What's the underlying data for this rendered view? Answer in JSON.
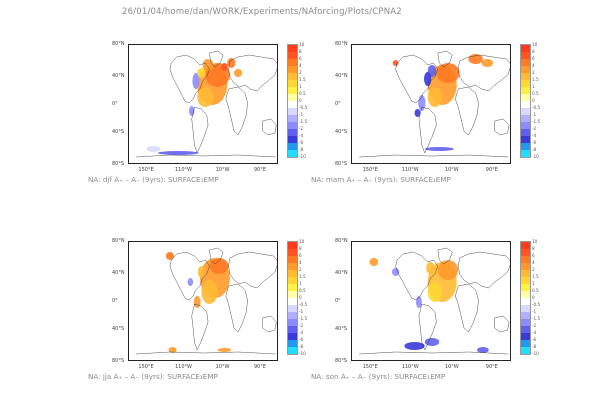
{
  "page": {
    "path_title": "26/01/04/home/dan/WORK/Experiments/NAforcing/Plots/CPNA2"
  },
  "axes": {
    "lat_labels": [
      "80°N",
      "40°N",
      "0°",
      "40°S",
      "80°S"
    ],
    "lon_labels": [
      "150°E",
      "110°W",
      "10°W",
      "90°E"
    ]
  },
  "colorbar": {
    "labels": [
      "10",
      "8",
      "6",
      "4",
      "2",
      "1.5",
      "1",
      "0.5",
      "0",
      "-0.5",
      "-1",
      "-1.5",
      "-2",
      "-4",
      "-6",
      "-8",
      "-10"
    ],
    "colors": [
      "#ff3b1d",
      "#ff5522",
      "#ff7a22",
      "#ff9a2a",
      "#ffbb33",
      "#ffd633",
      "#fff044",
      "#ffffaa",
      "#ffffff",
      "#d9d9ff",
      "#b0b0ff",
      "#8c8cff",
      "#6060ee",
      "#3a3ad8",
      "#2299ee",
      "#22ddff"
    ]
  },
  "panels": [
    {
      "id": "djf",
      "caption": "NA: djf A₊ – A₋ (9yrs): SURFACE₁EMP"
    },
    {
      "id": "mam",
      "caption": "NA: mam A₊ – A₋ (9yrs): SURFACE₁EMP"
    },
    {
      "id": "jja",
      "caption": "NA: jja A₊ – A₋ (9yrs): SURFACE₁EMP"
    },
    {
      "id": "son",
      "caption": "NA: son A₊ – A₋ (9yrs): SURFACE₁EMP"
    }
  ]
}
